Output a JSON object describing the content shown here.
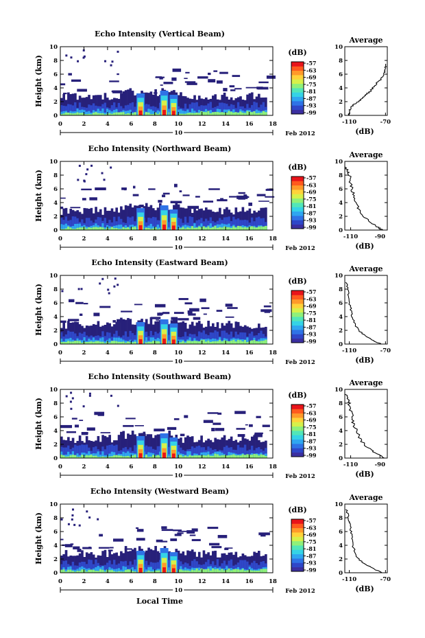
{
  "x_label": "Local Time",
  "date_label": "Feb 2012",
  "day_label": "10",
  "colorbar_unit": "(dB)",
  "colorbar_ticks": [
    "-57",
    "-63",
    "-69",
    "-75",
    "-81",
    "-87",
    "-93",
    "-99"
  ],
  "colorbar_colors": [
    "#3b2fa0",
    "#2f47c8",
    "#2f73e6",
    "#2fa6f0",
    "#35d3e6",
    "#52e6b8",
    "#8ff07a",
    "#d7f04a",
    "#ffd23a",
    "#ff9a2a",
    "#ff5a1e",
    "#e8141a"
  ],
  "avg_title": "Average",
  "avg_unit": "(dB)",
  "chart_data": [
    {
      "type": "heatmap",
      "title": "Echo Intensity (Vertical Beam)",
      "xlabel": "Local Time",
      "ylabel": "Height (km)",
      "xlim": [
        0,
        18
      ],
      "ylim": [
        0,
        10
      ],
      "xticks": [
        "0",
        "2",
        "4",
        "6",
        "8",
        "10",
        "12",
        "14",
        "16",
        "18"
      ],
      "yticks": [
        "0",
        "2",
        "4",
        "6",
        "8",
        "10"
      ],
      "colorbar": {
        "label": "(dB)",
        "ticks": [
          -57,
          -63,
          -69,
          -75,
          -81,
          -87,
          -93,
          -99
        ]
      },
      "profile": {
        "title": "Average",
        "xlabel": "(dB)",
        "xticks": [
          "-110",
          "-70"
        ],
        "xlim": [
          -115,
          -68
        ],
        "ylim": [
          0,
          10
        ],
        "points": [
          [
            -111,
            0
          ],
          [
            -110,
            0.5
          ],
          [
            -109,
            1
          ],
          [
            -106,
            1.5
          ],
          [
            -100,
            2
          ],
          [
            -95,
            2.5
          ],
          [
            -92,
            3
          ],
          [
            -87,
            3.5
          ],
          [
            -84,
            4
          ],
          [
            -81,
            4.5
          ],
          [
            -77,
            5
          ],
          [
            -74,
            5.5
          ],
          [
            -72,
            6
          ],
          [
            -71,
            6.5
          ],
          [
            -70,
            7
          ],
          [
            -69,
            7.5
          ]
        ]
      }
    },
    {
      "type": "heatmap",
      "title": "Echo Intensity (Northward Beam)",
      "xlabel": "Local Time",
      "ylabel": "Height (km)",
      "xlim": [
        0,
        18
      ],
      "ylim": [
        0,
        10
      ],
      "xticks": [
        "0",
        "2",
        "4",
        "6",
        "8",
        "10",
        "12",
        "14",
        "16",
        "18"
      ],
      "yticks": [
        "0",
        "2",
        "4",
        "6",
        "8",
        "10"
      ],
      "colorbar": {
        "label": "(dB)",
        "ticks": [
          -57,
          -63,
          -69,
          -75,
          -81,
          -87,
          -93,
          -99
        ]
      },
      "profile": {
        "title": "Average",
        "xlabel": "(dB)",
        "xticks": [
          "-110",
          "-90"
        ],
        "xlim": [
          -114,
          -85
        ],
        "ylim": [
          0,
          10
        ],
        "points": [
          [
            -113,
            9.2
          ],
          [
            -112,
            8.5
          ],
          [
            -111,
            8
          ],
          [
            -110,
            7
          ],
          [
            -109,
            6
          ],
          [
            -108,
            5
          ],
          [
            -107,
            4
          ],
          [
            -104,
            3
          ],
          [
            -101,
            2
          ],
          [
            -97,
            1.2
          ],
          [
            -92,
            0.5
          ],
          [
            -88,
            0
          ]
        ]
      }
    },
    {
      "type": "heatmap",
      "title": "Echo Intensity (Eastward Beam)",
      "xlabel": "Local Time",
      "ylabel": "Height (km)",
      "xlim": [
        0,
        18
      ],
      "ylim": [
        0,
        10
      ],
      "xticks": [
        "0",
        "2",
        "4",
        "6",
        "8",
        "10",
        "12",
        "14",
        "16",
        "18"
      ],
      "yticks": [
        "0",
        "2",
        "4",
        "6",
        "8",
        "10"
      ],
      "colorbar": {
        "label": "(dB)",
        "ticks": [
          -57,
          -63,
          -69,
          -75,
          -81,
          -87,
          -93,
          -99
        ]
      },
      "profile": {
        "title": "Average",
        "xlabel": "(dB)",
        "xticks": [
          "-110",
          "-70"
        ],
        "xlim": [
          -115,
          -68
        ],
        "ylim": [
          0,
          10
        ],
        "points": [
          [
            -113,
            9
          ],
          [
            -112,
            8
          ],
          [
            -111,
            7
          ],
          [
            -110,
            6
          ],
          [
            -108,
            5
          ],
          [
            -107,
            4
          ],
          [
            -104,
            3
          ],
          [
            -100,
            2
          ],
          [
            -92,
            1.2
          ],
          [
            -83,
            0.5
          ],
          [
            -75,
            0
          ]
        ]
      }
    },
    {
      "type": "heatmap",
      "title": "Echo Intensity (Southward Beam)",
      "xlabel": "Local Time",
      "ylabel": "Height (km)",
      "xlim": [
        0,
        18
      ],
      "ylim": [
        0,
        10
      ],
      "xticks": [
        "0",
        "2",
        "4",
        "6",
        "8",
        "10",
        "12",
        "14",
        "16",
        "18"
      ],
      "yticks": [
        "0",
        "2",
        "4",
        "6",
        "8",
        "10"
      ],
      "colorbar": {
        "label": "(dB)",
        "ticks": [
          -57,
          -63,
          -69,
          -75,
          -81,
          -87,
          -93,
          -99
        ]
      },
      "profile": {
        "title": "Average",
        "xlabel": "(dB)",
        "xticks": [
          "-110",
          "-90"
        ],
        "xlim": [
          -114,
          -85
        ],
        "ylim": [
          0,
          10
        ],
        "points": [
          [
            -113,
            9.3
          ],
          [
            -112,
            8.5
          ],
          [
            -111,
            8
          ],
          [
            -110,
            7
          ],
          [
            -109,
            6
          ],
          [
            -108,
            5
          ],
          [
            -106,
            4
          ],
          [
            -104,
            3
          ],
          [
            -101,
            2
          ],
          [
            -96,
            1.2
          ],
          [
            -91,
            0.5
          ],
          [
            -87,
            0
          ]
        ]
      }
    },
    {
      "type": "heatmap",
      "title": "Echo Intensity (Westward Beam)",
      "xlabel": "Local Time",
      "ylabel": "Height (km)",
      "xlim": [
        0,
        18
      ],
      "ylim": [
        0,
        10
      ],
      "xticks": [
        "0",
        "2",
        "4",
        "6",
        "8",
        "10",
        "12",
        "14",
        "16",
        "18"
      ],
      "yticks": [
        "0",
        "2",
        "4",
        "6",
        "8",
        "10"
      ],
      "colorbar": {
        "label": "(dB)",
        "ticks": [
          -57,
          -63,
          -69,
          -75,
          -81,
          -87,
          -93,
          -99
        ]
      },
      "profile": {
        "title": "Average",
        "xlabel": "(dB)",
        "xticks": [
          "-110",
          "-70"
        ],
        "xlim": [
          -115,
          -68
        ],
        "ylim": [
          0,
          10
        ],
        "points": [
          [
            -113,
            9.2
          ],
          [
            -112,
            8.5
          ],
          [
            -110,
            7.5
          ],
          [
            -109,
            7
          ],
          [
            -108,
            6
          ],
          [
            -107,
            5
          ],
          [
            -106,
            4
          ],
          [
            -104,
            3
          ],
          [
            -100,
            2
          ],
          [
            -92,
            1.2
          ],
          [
            -82,
            0.5
          ],
          [
            -74,
            0
          ]
        ]
      }
    }
  ]
}
